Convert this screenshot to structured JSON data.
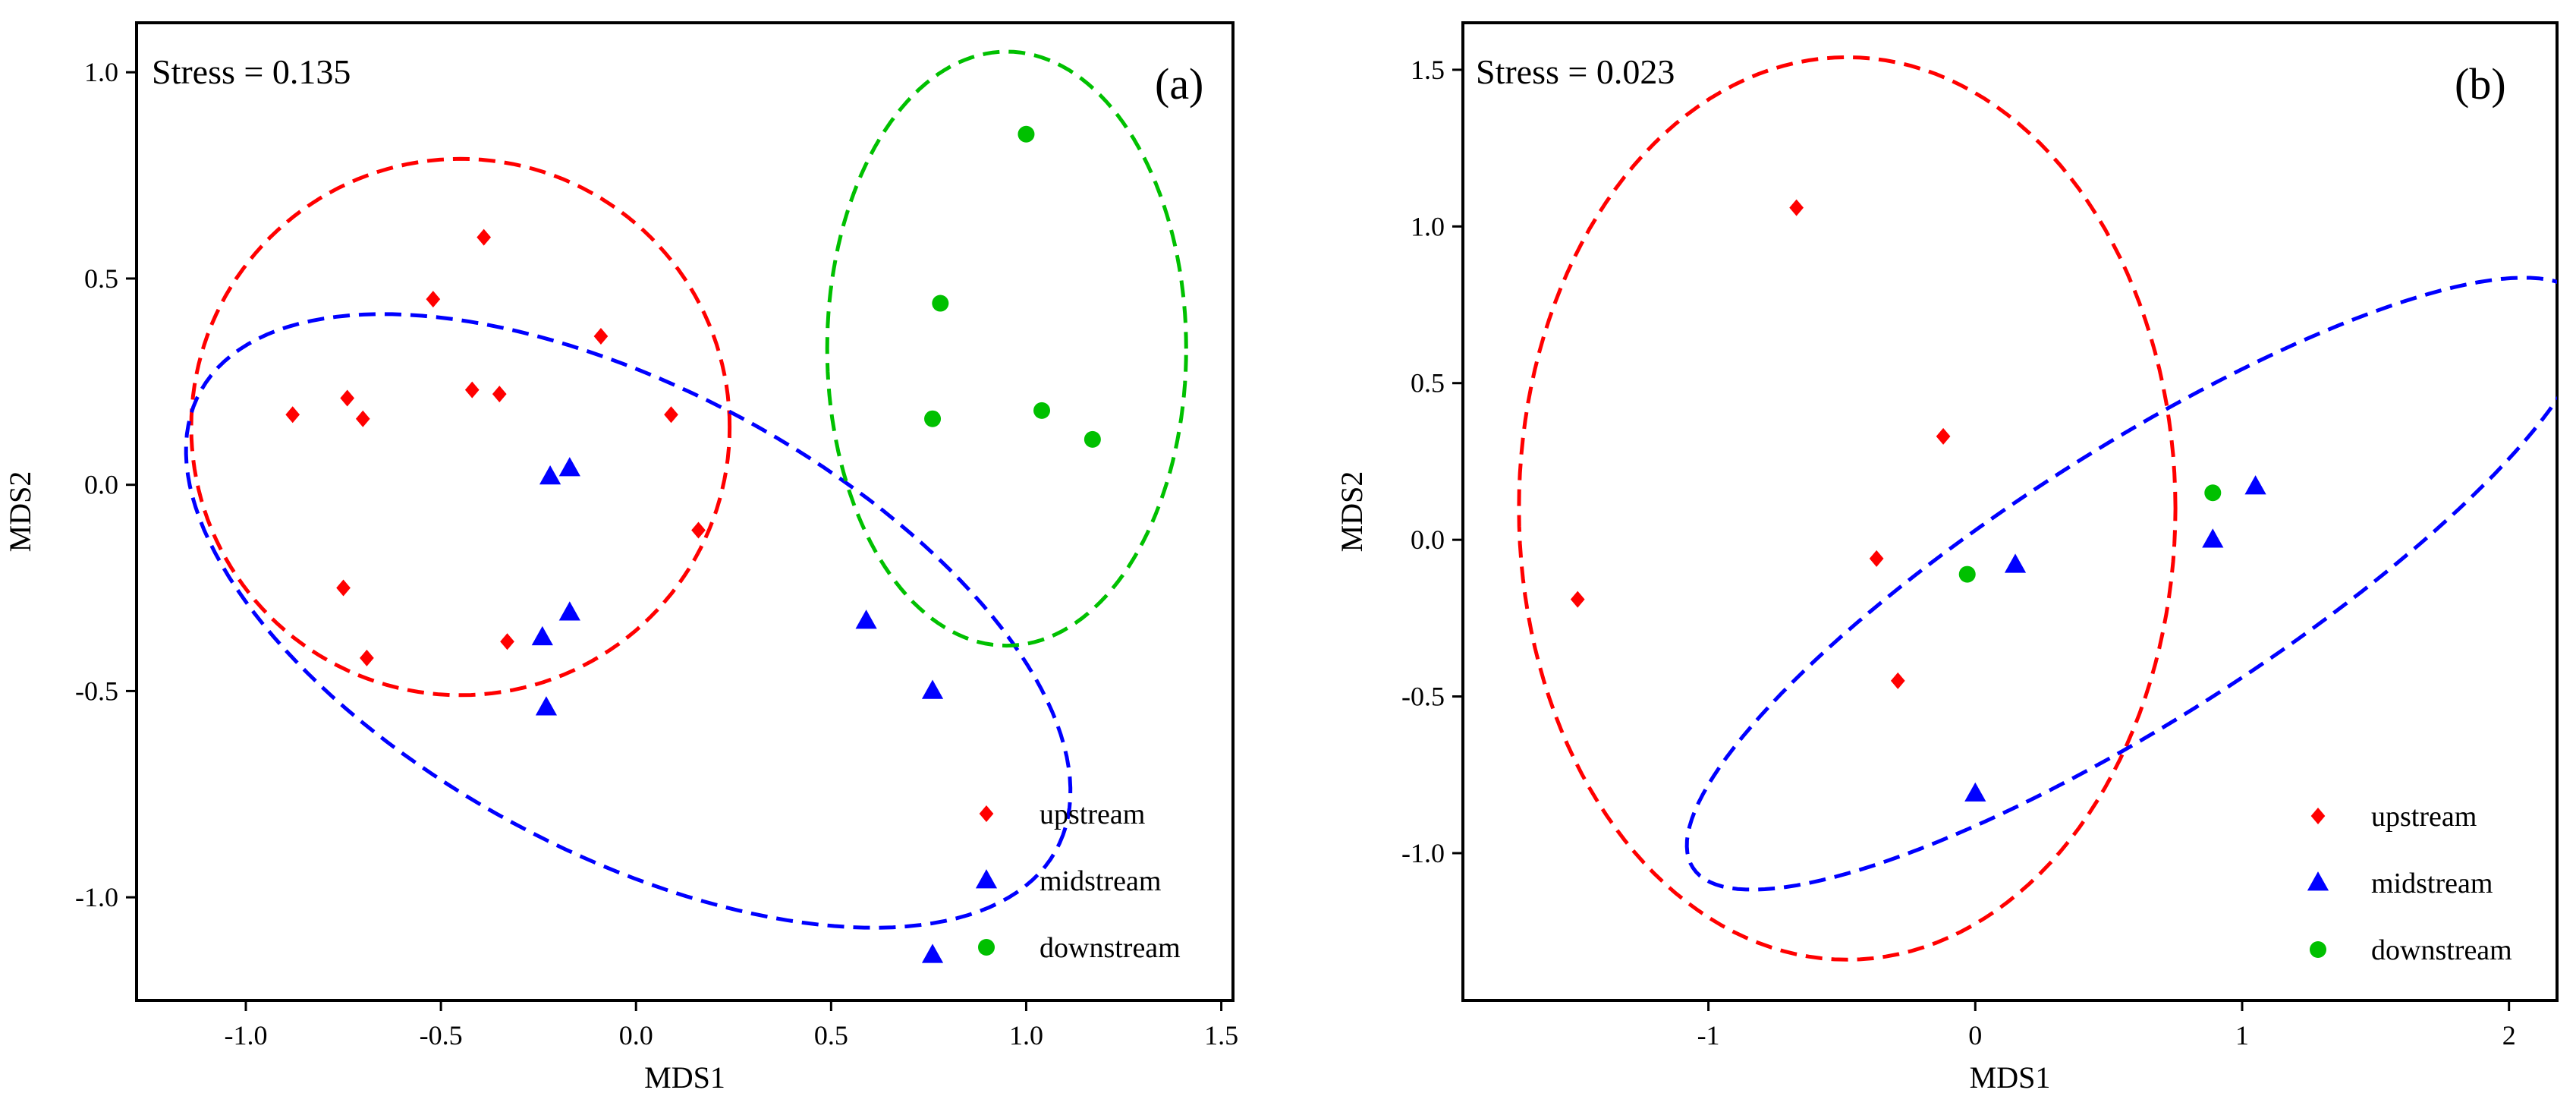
{
  "colors": {
    "upstream": "#FF0000",
    "midstream": "#0000FF",
    "downstream": "#00C000"
  },
  "chart_data": [
    {
      "type": "scatter",
      "panel_label": "(a)",
      "stress_label": "Stress = 0.135",
      "xlabel": "MDS1",
      "ylabel": "MDS2",
      "xlim": [
        -1.28,
        1.53
      ],
      "ylim": [
        -1.25,
        1.12
      ],
      "xticks": [
        -1.0,
        -0.5,
        0.0,
        0.5,
        1.0,
        1.5
      ],
      "xtick_labels": [
        "-1.0",
        "-0.5",
        "0.0",
        "0.5",
        "1.0",
        "1.5"
      ],
      "yticks": [
        -1.0,
        -0.5,
        0.0,
        0.5,
        1.0
      ],
      "ytick_labels": [
        "-1.0",
        "-0.5",
        "0.0",
        "0.5",
        "1.0"
      ],
      "legend_position": "bottom-right",
      "series": [
        {
          "name": "upstream",
          "marker": "diamond",
          "points": [
            [
              -0.88,
              0.17
            ],
            [
              -0.74,
              0.21
            ],
            [
              -0.7,
              0.16
            ],
            [
              -0.75,
              -0.25
            ],
            [
              -0.69,
              -0.42
            ],
            [
              -0.52,
              0.45
            ],
            [
              -0.42,
              0.23
            ],
            [
              -0.39,
              0.6
            ],
            [
              -0.35,
              0.22
            ],
            [
              -0.09,
              0.36
            ],
            [
              0.09,
              0.17
            ],
            [
              0.16,
              -0.11
            ],
            [
              -0.33,
              -0.38
            ]
          ]
        },
        {
          "name": "midstream",
          "marker": "triangle",
          "points": [
            [
              -0.22,
              0.02
            ],
            [
              -0.17,
              0.04
            ],
            [
              -0.24,
              -0.37
            ],
            [
              -0.17,
              -0.31
            ],
            [
              -0.23,
              -0.54
            ],
            [
              0.59,
              -0.33
            ],
            [
              0.76,
              -0.5
            ],
            [
              0.76,
              -1.14
            ]
          ]
        },
        {
          "name": "downstream",
          "marker": "circle",
          "points": [
            [
              1.0,
              0.85
            ],
            [
              0.78,
              0.44
            ],
            [
              0.76,
              0.16
            ],
            [
              1.04,
              0.18
            ],
            [
              1.17,
              0.11
            ]
          ]
        }
      ],
      "ellipses": [
        {
          "group": "upstream",
          "cx": -0.45,
          "cy": 0.14,
          "rx": 0.69,
          "ry": 0.65,
          "angle_deg": 0
        },
        {
          "group": "midstream",
          "cx": -0.02,
          "cy": -0.33,
          "rx": 1.23,
          "ry": 0.57,
          "angle_deg": -26
        },
        {
          "group": "downstream",
          "cx": 0.95,
          "cy": 0.33,
          "rx": 0.46,
          "ry": 0.72,
          "angle_deg": 0
        }
      ]
    },
    {
      "type": "scatter",
      "panel_label": "(b)",
      "stress_label": "Stress = 0.023",
      "xlabel": "MDS1",
      "ylabel": "MDS2",
      "xlim": [
        -1.92,
        2.18
      ],
      "ylim": [
        -1.47,
        1.65
      ],
      "xticks": [
        -1,
        0,
        1,
        2
      ],
      "xtick_labels": [
        "-1",
        "0",
        "1",
        "2"
      ],
      "yticks": [
        -1.0,
        -0.5,
        0.0,
        0.5,
        1.0,
        1.5
      ],
      "ytick_labels": [
        "-1.0",
        "-0.5",
        "0.0",
        "0.5",
        "1.0",
        "1.5"
      ],
      "legend_position": "bottom-right",
      "series": [
        {
          "name": "upstream",
          "marker": "diamond",
          "points": [
            [
              -0.67,
              1.06
            ],
            [
              -0.12,
              0.33
            ],
            [
              -0.37,
              -0.06
            ],
            [
              -1.49,
              -0.19
            ],
            [
              -0.29,
              -0.45
            ]
          ]
        },
        {
          "name": "midstream",
          "marker": "triangle",
          "points": [
            [
              0.15,
              -0.08
            ],
            [
              1.05,
              0.17
            ],
            [
              0.89,
              0.0
            ],
            [
              0.0,
              -0.81
            ]
          ]
        },
        {
          "name": "downstream",
          "marker": "circle",
          "points": [
            [
              -0.03,
              -0.11
            ],
            [
              0.89,
              0.15
            ]
          ]
        }
      ],
      "ellipses": [
        {
          "group": "upstream",
          "cx": -0.48,
          "cy": 0.1,
          "rx": 1.23,
          "ry": 1.44,
          "angle_deg": 0
        },
        {
          "group": "midstream",
          "cx": 0.61,
          "cy": -0.14,
          "rx": 1.9,
          "ry": 0.45,
          "angle_deg": 28
        }
      ]
    }
  ]
}
